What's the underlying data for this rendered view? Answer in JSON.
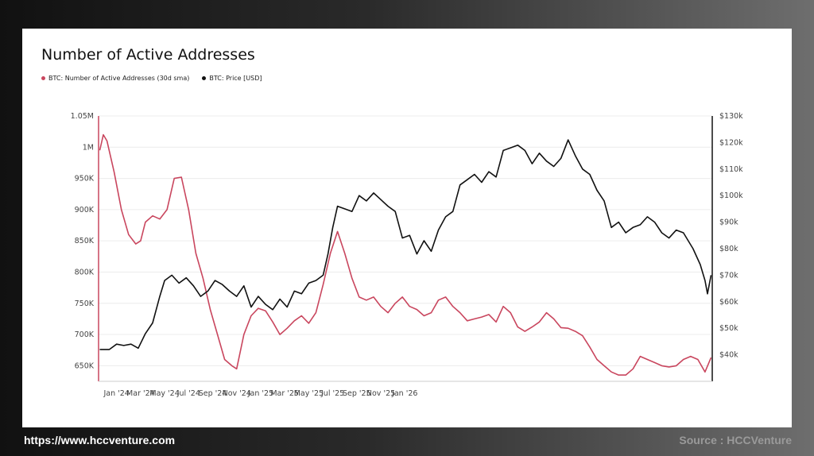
{
  "footer": {
    "website": "https://www.hccventure.com",
    "source": "Source : HCCVenture"
  },
  "chart_data": {
    "type": "line",
    "title": "Number of Active Addresses",
    "legend": [
      {
        "name": "BTC: Number of Active Addresses (30d sma)",
        "color": "#c9465e"
      },
      {
        "name": "BTC: Price [USD]",
        "color": "#111111"
      }
    ],
    "x_ticks": [
      "Jan '24",
      "Mar '24",
      "May '24",
      "Jul '24",
      "Sep '24",
      "Nov '24",
      "Jan '25",
      "Mar '25",
      "May '25",
      "Jul '25",
      "Sep '25",
      "Nov '25",
      "Jan '26"
    ],
    "x_range": [
      -0.75,
      24.8
    ],
    "y_left": {
      "range": [
        625000,
        1050000
      ],
      "ticks": [
        650000,
        700000,
        750000,
        800000,
        850000,
        900000,
        950000,
        1000000,
        1050000
      ],
      "tick_labels": [
        "650K",
        "700K",
        "750K",
        "800K",
        "850K",
        "900K",
        "950K",
        "1M",
        "1.05M"
      ],
      "color": "#c9465e"
    },
    "y_right": {
      "range": [
        30000,
        130000
      ],
      "ticks": [
        40000,
        50000,
        60000,
        70000,
        80000,
        90000,
        100000,
        110000,
        120000,
        130000
      ],
      "tick_labels": [
        "$40k",
        "$50k",
        "$60k",
        "$70k",
        "$80k",
        "$90k",
        "$100k",
        "$110k",
        "$120k",
        "$130k"
      ],
      "color": "#111111"
    },
    "series": [
      {
        "name": "BTC: Number of Active Addresses (30d sma)",
        "axis": "left",
        "color": "#c9465e",
        "x": [
          -0.7,
          -0.55,
          -0.4,
          -0.1,
          0.2,
          0.5,
          0.8,
          1.0,
          1.2,
          1.5,
          1.8,
          2.1,
          2.4,
          2.7,
          3.0,
          3.3,
          3.6,
          3.9,
          4.2,
          4.5,
          4.8,
          5.0,
          5.3,
          5.6,
          5.9,
          6.2,
          6.5,
          6.8,
          7.1,
          7.4,
          7.7,
          8.0,
          8.3,
          8.6,
          8.9,
          9.2,
          9.5,
          9.8,
          10.1,
          10.4,
          10.7,
          11.0,
          11.3,
          11.6,
          11.9,
          12.2,
          12.5,
          12.8,
          13.1,
          13.4,
          13.7,
          14.0,
          14.3,
          14.6,
          14.9,
          15.2,
          15.5,
          15.8,
          16.1,
          16.4,
          16.7,
          17.0,
          17.3,
          17.6,
          17.9,
          18.2,
          18.5,
          18.8,
          19.1,
          19.4,
          19.7,
          20.0,
          20.3,
          20.6,
          20.9,
          21.2,
          21.5,
          21.8,
          22.1,
          22.4,
          22.7,
          23.0,
          23.3,
          23.6,
          23.9,
          24.2,
          24.5,
          24.75
        ],
        "values": [
          995000,
          1020000,
          1010000,
          960000,
          900000,
          860000,
          845000,
          850000,
          880000,
          890000,
          885000,
          900000,
          950000,
          952000,
          900000,
          830000,
          790000,
          740000,
          700000,
          660000,
          650000,
          645000,
          700000,
          730000,
          742000,
          738000,
          720000,
          700000,
          710000,
          722000,
          730000,
          718000,
          735000,
          780000,
          830000,
          865000,
          830000,
          790000,
          760000,
          755000,
          760000,
          745000,
          735000,
          750000,
          760000,
          745000,
          740000,
          730000,
          735000,
          755000,
          760000,
          745000,
          735000,
          722000,
          725000,
          728000,
          732000,
          720000,
          745000,
          735000,
          712000,
          705000,
          712000,
          720000,
          735000,
          725000,
          711000,
          710000,
          705000,
          698000,
          680000,
          660000,
          650000,
          640000,
          635000,
          635000,
          645000,
          665000,
          660000,
          655000,
          650000,
          648000,
          650000,
          660000,
          665000,
          660000,
          640000,
          663000
        ]
      },
      {
        "name": "BTC: Price [USD]",
        "axis": "right",
        "color": "#111111",
        "x": [
          -0.7,
          -0.3,
          0.0,
          0.3,
          0.6,
          0.9,
          1.2,
          1.5,
          1.8,
          2.0,
          2.3,
          2.6,
          2.9,
          3.2,
          3.5,
          3.8,
          4.1,
          4.4,
          4.7,
          5.0,
          5.3,
          5.6,
          5.9,
          6.2,
          6.5,
          6.8,
          7.1,
          7.4,
          7.7,
          8.0,
          8.3,
          8.6,
          8.8,
          9.0,
          9.2,
          9.5,
          9.8,
          10.1,
          10.4,
          10.7,
          11.0,
          11.3,
          11.6,
          11.9,
          12.2,
          12.5,
          12.8,
          13.1,
          13.4,
          13.7,
          14.0,
          14.3,
          14.6,
          14.9,
          15.2,
          15.5,
          15.8,
          16.1,
          16.4,
          16.7,
          17.0,
          17.3,
          17.6,
          17.9,
          18.2,
          18.5,
          18.8,
          19.1,
          19.4,
          19.7,
          20.0,
          20.3,
          20.6,
          20.9,
          21.2,
          21.5,
          21.8,
          22.1,
          22.4,
          22.7,
          23.0,
          23.3,
          23.6,
          24.0,
          24.3,
          24.5,
          24.6,
          24.75
        ],
        "values": [
          42000,
          42000,
          44000,
          43500,
          44000,
          42500,
          48000,
          52000,
          62000,
          68000,
          70000,
          67000,
          69000,
          66000,
          62000,
          64000,
          68000,
          66500,
          64000,
          62000,
          66000,
          58000,
          62000,
          59000,
          57000,
          61000,
          58000,
          64000,
          63000,
          67000,
          68000,
          70000,
          78000,
          88000,
          96000,
          95000,
          94000,
          100000,
          98000,
          101000,
          98500,
          96000,
          94000,
          84000,
          85000,
          78000,
          83000,
          79000,
          87000,
          92000,
          94000,
          104000,
          106000,
          108000,
          105000,
          109000,
          107000,
          117000,
          118000,
          119000,
          117000,
          112000,
          116000,
          113000,
          111000,
          114000,
          121000,
          115000,
          110000,
          108000,
          102000,
          98000,
          88000,
          90000,
          86000,
          88000,
          89000,
          92000,
          90000,
          86000,
          84000,
          87000,
          86000,
          80000,
          74000,
          68000,
          63000,
          70000
        ]
      }
    ]
  }
}
